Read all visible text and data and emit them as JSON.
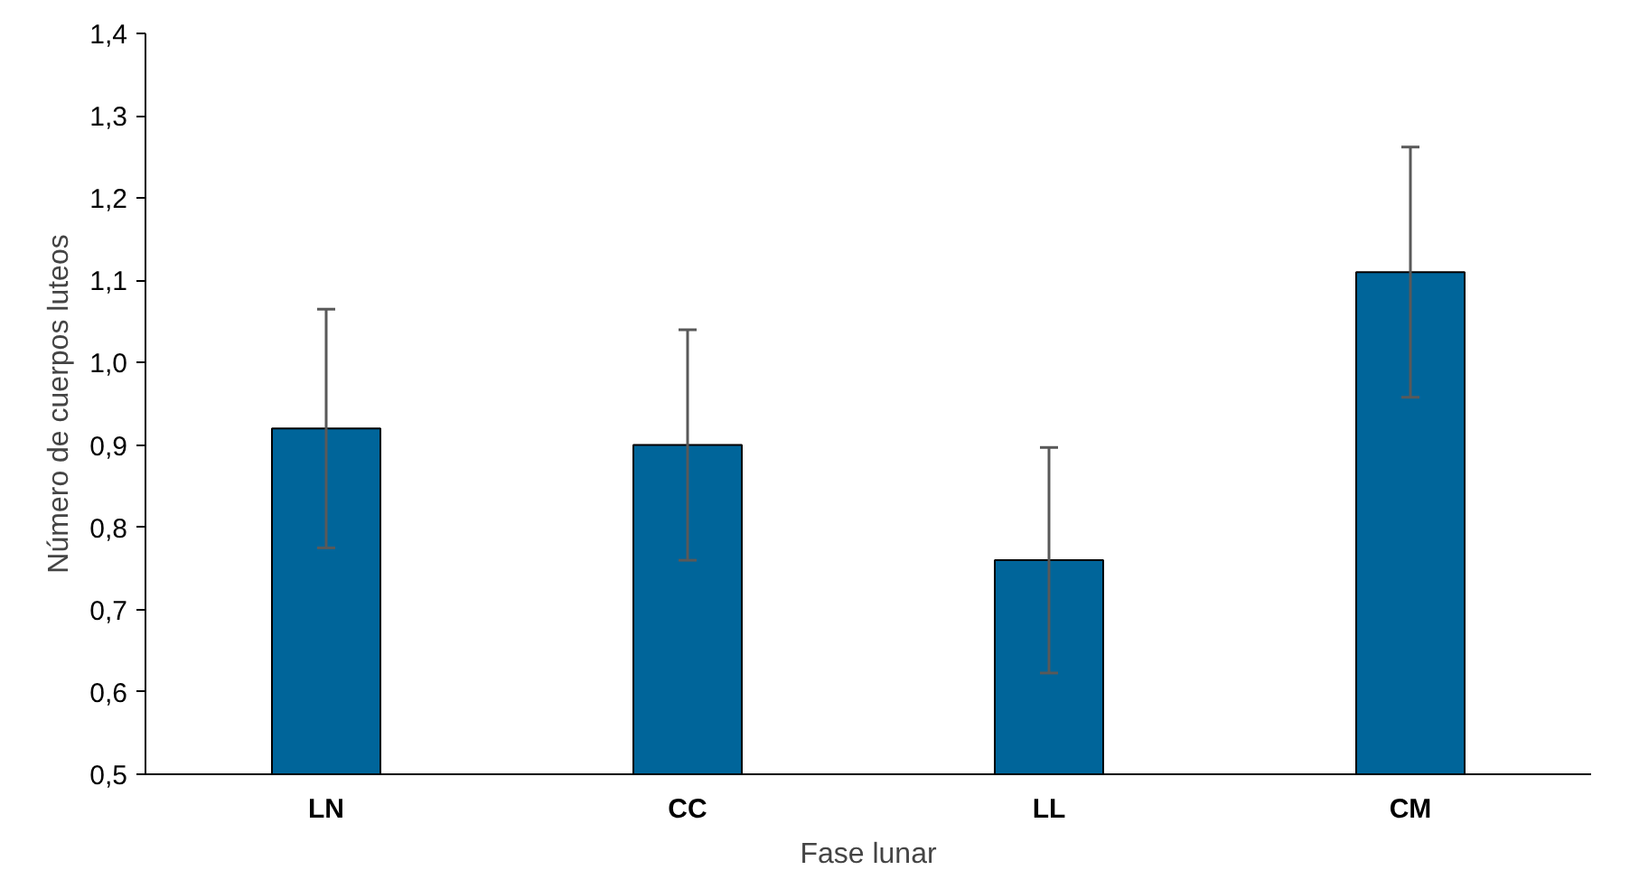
{
  "chart_data": {
    "type": "bar",
    "xlabel": "Fase lunar",
    "ylabel": "Número de cuerpos luteos",
    "categories": [
      "LN",
      "CC",
      "LL",
      "CM"
    ],
    "values": [
      0.92,
      0.9,
      0.76,
      1.11
    ],
    "errors": [
      0.145,
      0.14,
      0.137,
      0.152
    ],
    "color": "#00659a",
    "ylim": [
      0.5,
      1.4
    ],
    "yticks": [
      {
        "value": 0.5,
        "label": "0,5"
      },
      {
        "value": 0.6,
        "label": "0,6"
      },
      {
        "value": 0.7,
        "label": "0,7"
      },
      {
        "value": 0.8,
        "label": "0,8"
      },
      {
        "value": 0.9,
        "label": "0,9"
      },
      {
        "value": 1.0,
        "label": "1,0"
      },
      {
        "value": 1.1,
        "label": "1,1"
      },
      {
        "value": 1.2,
        "label": "1,2"
      },
      {
        "value": 1.3,
        "label": "1,3"
      },
      {
        "value": 1.4,
        "label": "1,4"
      }
    ],
    "grid": false
  }
}
